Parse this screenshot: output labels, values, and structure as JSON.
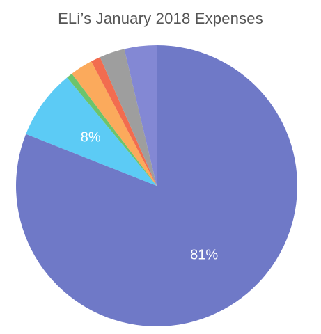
{
  "chart_data": {
    "type": "pie",
    "title": "ELi’s January 2018 Expenses",
    "slices": [
      {
        "value": 81,
        "color": "#6F79C7",
        "label": "81%"
      },
      {
        "value": 8,
        "color": "#5CCBF5",
        "label": "8%"
      },
      {
        "value": 0.7,
        "color": "#6CC46C",
        "label": ""
      },
      {
        "value": 2.6,
        "color": "#FBAA5C",
        "label": ""
      },
      {
        "value": 1.1,
        "color": "#F26C4F",
        "label": ""
      },
      {
        "value": 2.9,
        "color": "#9E9E9E",
        "label": ""
      },
      {
        "value": 3.7,
        "color": "#8388D4",
        "label": ""
      }
    ],
    "start_angle_deg": 0,
    "direction": "clockwise"
  }
}
